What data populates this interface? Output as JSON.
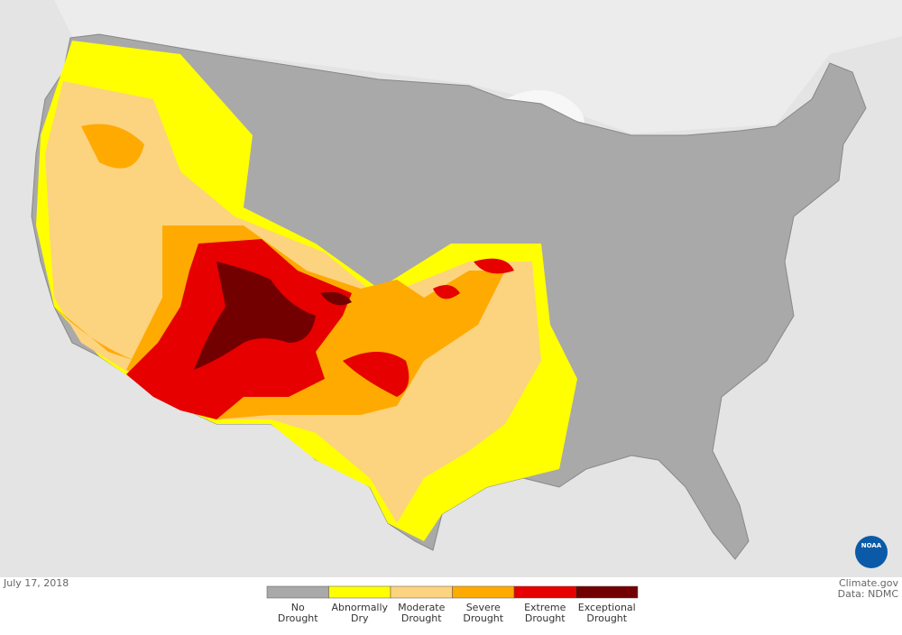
{
  "map": {
    "date": "July 17, 2018",
    "credit": "Climate.gov",
    "source": "Data: NDMC",
    "logo": "NOAA",
    "legend": [
      {
        "lines": [
          "No",
          "Drought"
        ],
        "color": "#a9a9a9"
      },
      {
        "lines": [
          "Abnormally",
          "Dry"
        ],
        "color": "#ffff00"
      },
      {
        "lines": [
          "Moderate",
          "Drought"
        ],
        "color": "#fcd37f"
      },
      {
        "lines": [
          "Severe",
          "Drought"
        ],
        "color": "#ffaa00"
      },
      {
        "lines": [
          "Extreme",
          "Drought"
        ],
        "color": "#e60000"
      },
      {
        "lines": [
          "Exceptional",
          "Drought"
        ],
        "color": "#730000"
      }
    ]
  }
}
